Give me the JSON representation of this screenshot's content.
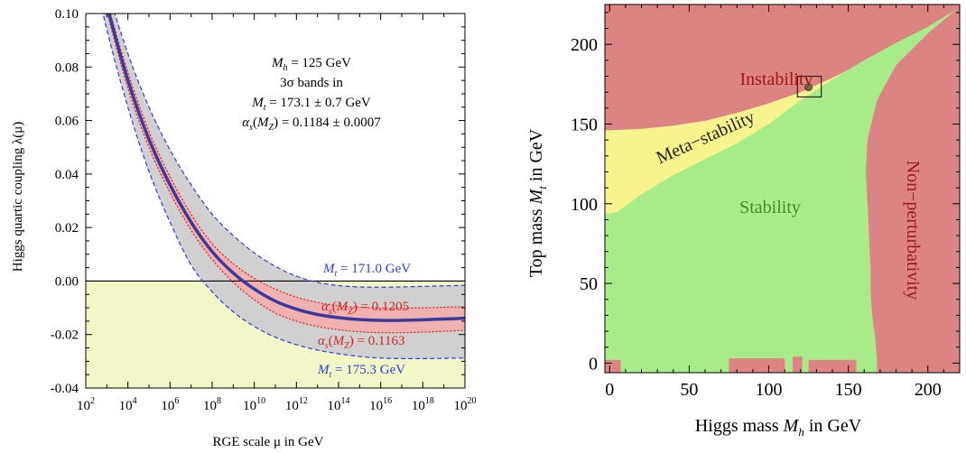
{
  "chart_data": [
    {
      "type": "line",
      "xlabel": "RGE scale μ in GeV",
      "ylabel": "Higgs quartic coupling λ(μ)",
      "x_scale": "log",
      "xlim": [
        100,
        1e+20
      ],
      "ylim": [
        -0.04,
        0.1
      ],
      "x_ticks": [
        {
          "base": "10",
          "exp": "2"
        },
        {
          "base": "10",
          "exp": "4"
        },
        {
          "base": "10",
          "exp": "6"
        },
        {
          "base": "10",
          "exp": "8"
        },
        {
          "base": "10",
          "exp": "10"
        },
        {
          "base": "10",
          "exp": "12"
        },
        {
          "base": "10",
          "exp": "14"
        },
        {
          "base": "10",
          "exp": "16"
        },
        {
          "base": "10",
          "exp": "18"
        },
        {
          "base": "10",
          "exp": "20"
        }
      ],
      "y_ticks": [
        "0.10",
        "0.08",
        "0.06",
        "0.04",
        "0.02",
        "0.00",
        "-0.02",
        "-0.04"
      ],
      "y_tick_values": [
        0.1,
        0.08,
        0.06,
        0.04,
        0.02,
        0.0,
        -0.02,
        -0.04
      ],
      "x": [
        100,
        1000.0,
        10000.0,
        100000.0,
        1000000.0,
        10000000.0,
        100000000.0,
        1000000000.0,
        10000000000.0,
        100000000000.0,
        1000000000000.0,
        10000000000000.0,
        100000000000000.0,
        1000000000000000.0,
        1e+16,
        1e+17,
        1e+18,
        1e+19,
        1e+20
      ],
      "series": [
        {
          "role": "central",
          "color": "#3a3a9a",
          "values": [
            0.134,
            0.103,
            0.075,
            0.053,
            0.036,
            0.022,
            0.011,
            0.003,
            -0.003,
            -0.0075,
            -0.0105,
            -0.0125,
            -0.0137,
            -0.0144,
            -0.0147,
            -0.0147,
            -0.0145,
            -0.0142,
            -0.0139
          ]
        },
        {
          "role": "mt-low",
          "color": "#2f3fe0",
          "values": [
            0.14,
            0.11,
            0.085,
            0.065,
            0.049,
            0.036,
            0.025,
            0.017,
            0.0105,
            0.0055,
            0.0018,
            -0.0005,
            -0.0017,
            -0.0022,
            -0.0023,
            -0.0022,
            -0.002,
            -0.0018,
            -0.0016
          ]
        },
        {
          "role": "mt-high",
          "color": "#2f3fe0",
          "values": [
            0.128,
            0.094,
            0.065,
            0.041,
            0.022,
            0.006,
            -0.004,
            -0.0115,
            -0.017,
            -0.021,
            -0.0238,
            -0.0258,
            -0.0272,
            -0.0282,
            -0.0288,
            -0.029,
            -0.029,
            -0.0289,
            -0.0288
          ]
        },
        {
          "role": "as-high",
          "color": "#dd2222",
          "values": [
            0.135,
            0.105,
            0.078,
            0.056,
            0.039,
            0.025,
            0.014,
            0.0065,
            0.001,
            -0.003,
            -0.006,
            -0.008,
            -0.0092,
            -0.0098,
            -0.0101,
            -0.0101,
            -0.01,
            -0.0098,
            -0.0096
          ]
        },
        {
          "role": "as-low",
          "color": "#dd2222",
          "values": [
            0.133,
            0.101,
            0.072,
            0.05,
            0.033,
            0.019,
            0.008,
            -0.0005,
            -0.007,
            -0.012,
            -0.015,
            -0.017,
            -0.0182,
            -0.019,
            -0.0193,
            -0.0193,
            -0.0191,
            -0.0188,
            -0.0184
          ]
        }
      ],
      "info_lines": [
        {
          "var": "M",
          "sub": "h",
          "rest": " = 125 GeV"
        },
        {
          "var": "3σ",
          "sub": "",
          "rest": " bands in"
        },
        {
          "var": "M",
          "sub": "t",
          "rest": " = 173.1 ± 0.7 GeV"
        },
        {
          "var": "α",
          "sub": "s",
          "mid": "(M",
          "sub2": "Z",
          "rest": ") = 0.1184 ± 0.0007"
        }
      ],
      "annotations": {
        "mt_low": {
          "var": "M",
          "sub": "t",
          "rest": " = 171.0 GeV"
        },
        "as_high": {
          "var": "α",
          "sub": "s",
          "mid": "(M",
          "sub2": "Z",
          "rest": ") = 0.1205"
        },
        "as_low": {
          "var": "α",
          "sub": "s",
          "mid": "(M",
          "sub2": "Z",
          "rest": ") = 0.1163"
        },
        "mt_high": {
          "var": "M",
          "sub": "t",
          "rest": " = 175.3 GeV"
        }
      },
      "colors": {
        "outer_band": "#d0d0d0",
        "inner_band": "#f2b1b1",
        "negative_region": "#f3f7c8",
        "central": "#3a3a9a",
        "mt_lines": "#2f3fe0",
        "as_lines": "#dd2222"
      }
    },
    {
      "type": "area",
      "xlabel_parts": {
        "pre": "Higgs mass ",
        "var": "M",
        "sub": "h",
        "post": " in GeV"
      },
      "ylabel_parts": {
        "pre": "Top mass ",
        "var": "M",
        "sub": "t",
        "post": " in GeV"
      },
      "xlim": [
        -3,
        220
      ],
      "ylim": [
        -6,
        225
      ],
      "x_ticks": [
        "0",
        "50",
        "100",
        "150",
        "200"
      ],
      "x_tick_values": [
        0,
        50,
        100,
        150,
        200
      ],
      "y_ticks": [
        "0",
        "50",
        "100",
        "150",
        "200"
      ],
      "y_tick_values": [
        0,
        50,
        100,
        150,
        200
      ],
      "regions": {
        "instability_label": "Instability",
        "metastability_label": "Meta−stability",
        "stability_label": "Stability",
        "nonperturbativity_label": "Non−perturbativity"
      },
      "boundaries": {
        "instability_lower": [
          [
            0,
            146
          ],
          [
            20,
            147
          ],
          [
            40,
            149
          ],
          [
            60,
            152
          ],
          [
            80,
            157
          ],
          [
            100,
            163
          ],
          [
            120,
            170
          ],
          [
            140,
            179
          ],
          [
            160,
            189
          ],
          [
            180,
            199
          ],
          [
            200,
            210
          ],
          [
            218,
            222
          ]
        ],
        "metastability_lower": [
          [
            0,
            94
          ],
          [
            5,
            95
          ],
          [
            20,
            106
          ],
          [
            40,
            118
          ],
          [
            60,
            128
          ],
          [
            80,
            138
          ],
          [
            100,
            150
          ],
          [
            120,
            165
          ],
          [
            140,
            178
          ],
          [
            160,
            190
          ],
          [
            180,
            201
          ],
          [
            200,
            211
          ],
          [
            218,
            222
          ]
        ],
        "nonperturbativity_left": [
          [
            218,
            222
          ],
          [
            200,
            207
          ],
          [
            180,
            187
          ],
          [
            168,
            165
          ],
          [
            162,
            140
          ],
          [
            161,
            120
          ],
          [
            162,
            100
          ],
          [
            163,
            80
          ],
          [
            164,
            60
          ],
          [
            164,
            45
          ],
          [
            165,
            30
          ],
          [
            167,
            15
          ],
          [
            168,
            0
          ]
        ]
      },
      "experimental_point": {
        "mh": 125,
        "mt": 173.1
      },
      "zoom_box": {
        "mh": [
          118,
          133
        ],
        "mt": [
          167,
          180
        ]
      },
      "colors": {
        "instability": "#dc8484",
        "metastability": "#f7f38f",
        "stability": "#a8ec89",
        "nonperturbativity": "#dc8484",
        "label_red": "#a01818",
        "label_green": "#3f8f22",
        "label_dark": "#222222"
      }
    }
  ]
}
